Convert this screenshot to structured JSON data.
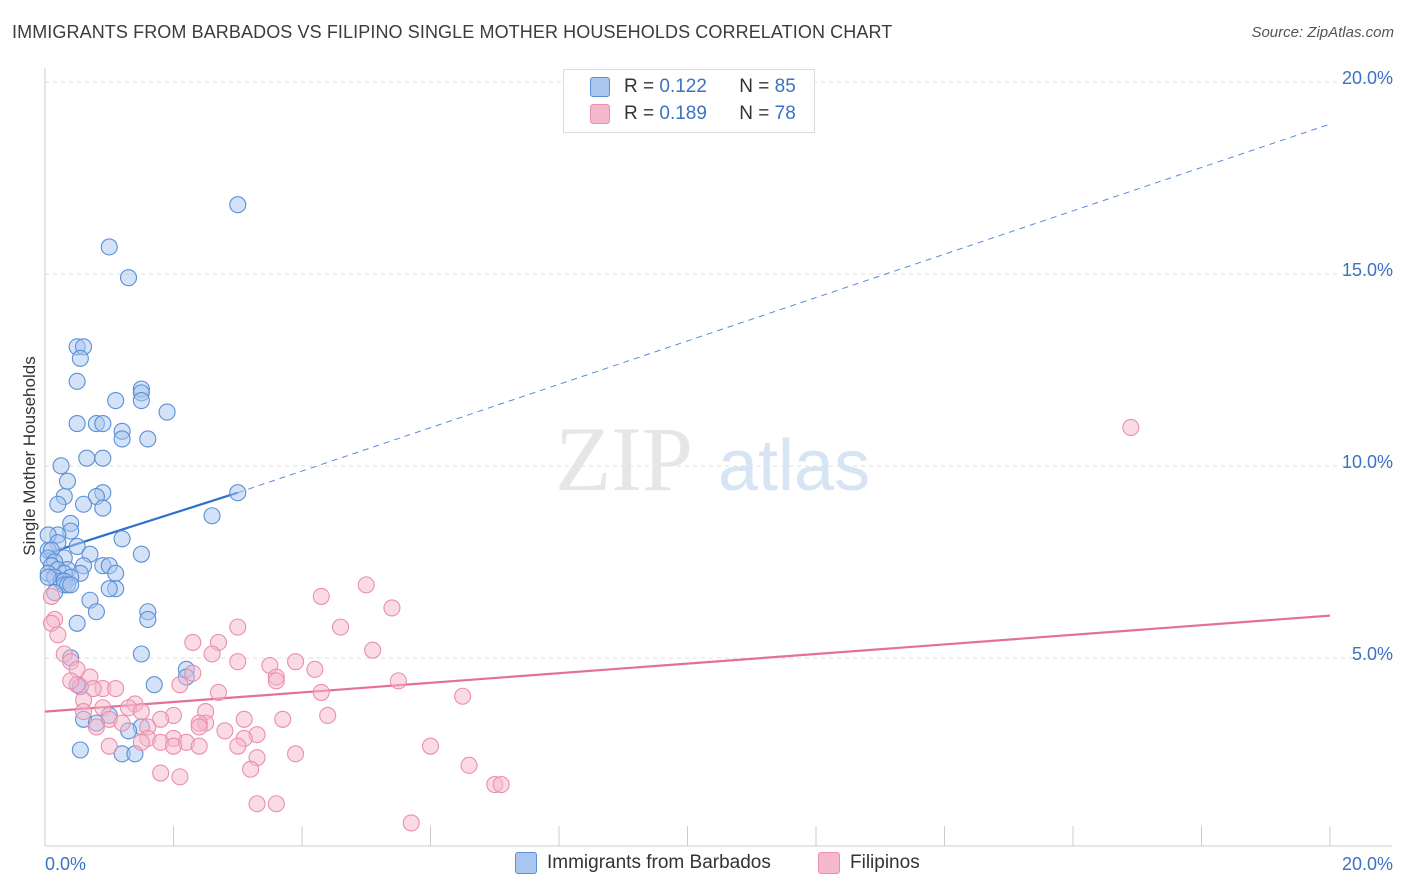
{
  "title": "IMMIGRANTS FROM BARBADOS VS FILIPINO SINGLE MOTHER HOUSEHOLDS CORRELATION CHART",
  "source": "Source: ZipAtlas.com",
  "legend": {
    "rows": [
      {
        "r_label": "R =",
        "r_value": "0.122",
        "n_label": "N =",
        "n_value": "85"
      },
      {
        "r_label": "R =",
        "r_value": "0.189",
        "n_label": "N =",
        "n_value": "78"
      }
    ]
  },
  "bottom_legend": [
    "Immigrants from Barbados",
    "Filipinos"
  ],
  "colors": {
    "blue_fill": "#a9c6ef",
    "blue_stroke": "#5b8fd6",
    "blue_line": "#2f6fcf",
    "pink_fill": "#f6b8cb",
    "pink_stroke": "#eb8fab",
    "pink_line": "#e4709a",
    "axis_text": "#3b72c4",
    "grid": "#dddddd"
  },
  "chart_data": {
    "type": "scatter",
    "xlabel": "",
    "ylabel": "Single Mother Households",
    "xlim": [
      0,
      20
    ],
    "ylim": [
      0,
      20
    ],
    "x_tick_labels": [
      "0.0%",
      "20.0%"
    ],
    "y_ticks": [
      5,
      10,
      15,
      20
    ],
    "y_tick_labels": [
      "5.0%",
      "10.0%",
      "15.0%",
      "20.0%"
    ],
    "grid": true,
    "series": [
      {
        "name": "Immigrants from Barbados",
        "trend": {
          "x0": 0,
          "y0": 7.6,
          "x1": 3,
          "y1": 9.2,
          "extend_to_x": 20,
          "extend_to_y": 18.8
        },
        "points": [
          [
            3.0,
            16.7
          ],
          [
            1.0,
            15.6
          ],
          [
            1.3,
            14.8
          ],
          [
            0.5,
            13.0
          ],
          [
            0.6,
            13.0
          ],
          [
            0.55,
            12.7
          ],
          [
            0.5,
            12.1
          ],
          [
            1.5,
            11.9
          ],
          [
            1.5,
            11.8
          ],
          [
            1.1,
            11.6
          ],
          [
            1.5,
            11.6
          ],
          [
            1.9,
            11.3
          ],
          [
            0.5,
            11.0
          ],
          [
            0.8,
            11.0
          ],
          [
            0.9,
            11.0
          ],
          [
            1.2,
            10.8
          ],
          [
            1.6,
            10.6
          ],
          [
            1.2,
            10.6
          ],
          [
            0.9,
            10.1
          ],
          [
            0.65,
            10.1
          ],
          [
            0.25,
            9.9
          ],
          [
            0.35,
            9.5
          ],
          [
            3.0,
            9.2
          ],
          [
            0.9,
            9.2
          ],
          [
            0.8,
            9.1
          ],
          [
            0.3,
            9.1
          ],
          [
            0.2,
            8.9
          ],
          [
            0.6,
            8.9
          ],
          [
            0.9,
            8.8
          ],
          [
            2.6,
            8.6
          ],
          [
            0.4,
            8.4
          ],
          [
            0.4,
            8.2
          ],
          [
            0.2,
            8.1
          ],
          [
            0.05,
            8.1
          ],
          [
            1.2,
            8.0
          ],
          [
            0.2,
            7.9
          ],
          [
            0.5,
            7.8
          ],
          [
            0.05,
            7.7
          ],
          [
            0.1,
            7.7
          ],
          [
            0.7,
            7.6
          ],
          [
            1.5,
            7.6
          ],
          [
            0.3,
            7.5
          ],
          [
            0.05,
            7.5
          ],
          [
            0.15,
            7.4
          ],
          [
            0.6,
            7.3
          ],
          [
            0.9,
            7.3
          ],
          [
            0.1,
            7.3
          ],
          [
            1.0,
            7.3
          ],
          [
            0.35,
            7.2
          ],
          [
            0.2,
            7.2
          ],
          [
            0.05,
            7.1
          ],
          [
            0.3,
            7.1
          ],
          [
            0.55,
            7.1
          ],
          [
            1.1,
            7.1
          ],
          [
            0.4,
            7.0
          ],
          [
            0.15,
            7.0
          ],
          [
            0.25,
            6.9
          ],
          [
            0.3,
            6.9
          ],
          [
            0.3,
            6.8
          ],
          [
            0.35,
            6.8
          ],
          [
            0.4,
            6.8
          ],
          [
            1.1,
            6.7
          ],
          [
            1.0,
            6.7
          ],
          [
            0.15,
            6.6
          ],
          [
            0.7,
            6.4
          ],
          [
            1.6,
            6.1
          ],
          [
            0.8,
            6.1
          ],
          [
            1.6,
            5.9
          ],
          [
            0.5,
            5.8
          ],
          [
            1.5,
            5.0
          ],
          [
            0.4,
            4.9
          ],
          [
            2.2,
            4.6
          ],
          [
            2.2,
            4.4
          ],
          [
            1.7,
            4.2
          ],
          [
            0.5,
            4.2
          ],
          [
            0.55,
            4.15
          ],
          [
            1.0,
            3.4
          ],
          [
            0.6,
            3.3
          ],
          [
            0.8,
            3.2
          ],
          [
            1.5,
            3.1
          ],
          [
            1.3,
            3.0
          ],
          [
            0.55,
            2.5
          ],
          [
            1.2,
            2.4
          ],
          [
            1.4,
            2.4
          ],
          [
            0.05,
            7.0
          ]
        ]
      },
      {
        "name": "Filipinos",
        "trend": {
          "x0": 0,
          "y0": 3.5,
          "x1": 20,
          "y1": 6.0
        },
        "points": [
          [
            16.9,
            10.9
          ],
          [
            5.0,
            6.8
          ],
          [
            4.3,
            6.5
          ],
          [
            5.4,
            6.2
          ],
          [
            0.15,
            5.9
          ],
          [
            0.1,
            5.8
          ],
          [
            3.0,
            5.7
          ],
          [
            4.6,
            5.7
          ],
          [
            2.3,
            5.3
          ],
          [
            2.7,
            5.3
          ],
          [
            0.3,
            5.0
          ],
          [
            5.1,
            5.1
          ],
          [
            2.6,
            5.0
          ],
          [
            0.4,
            4.8
          ],
          [
            3.0,
            4.8
          ],
          [
            3.9,
            4.8
          ],
          [
            3.5,
            4.7
          ],
          [
            4.2,
            4.6
          ],
          [
            0.5,
            4.6
          ],
          [
            2.3,
            4.5
          ],
          [
            0.7,
            4.4
          ],
          [
            3.6,
            4.4
          ],
          [
            3.6,
            4.3
          ],
          [
            5.5,
            4.3
          ],
          [
            2.1,
            4.2
          ],
          [
            0.5,
            4.2
          ],
          [
            0.9,
            4.1
          ],
          [
            0.75,
            4.1
          ],
          [
            1.1,
            4.1
          ],
          [
            4.3,
            4.0
          ],
          [
            2.7,
            4.0
          ],
          [
            6.5,
            3.9
          ],
          [
            0.6,
            3.8
          ],
          [
            1.4,
            3.7
          ],
          [
            1.3,
            3.6
          ],
          [
            0.9,
            3.6
          ],
          [
            1.5,
            3.5
          ],
          [
            2.5,
            3.5
          ],
          [
            0.6,
            3.5
          ],
          [
            2.0,
            3.4
          ],
          [
            4.4,
            3.4
          ],
          [
            1.8,
            3.3
          ],
          [
            1.0,
            3.3
          ],
          [
            3.1,
            3.3
          ],
          [
            3.7,
            3.3
          ],
          [
            1.2,
            3.2
          ],
          [
            2.5,
            3.2
          ],
          [
            2.4,
            3.2
          ],
          [
            1.6,
            3.1
          ],
          [
            2.4,
            3.1
          ],
          [
            0.8,
            3.1
          ],
          [
            2.8,
            3.0
          ],
          [
            3.3,
            2.9
          ],
          [
            2.0,
            2.8
          ],
          [
            1.6,
            2.8
          ],
          [
            1.5,
            2.7
          ],
          [
            2.2,
            2.7
          ],
          [
            1.8,
            2.7
          ],
          [
            3.1,
            2.8
          ],
          [
            1.0,
            2.6
          ],
          [
            2.4,
            2.6
          ],
          [
            3.0,
            2.6
          ],
          [
            2.0,
            2.6
          ],
          [
            6.0,
            2.6
          ],
          [
            3.9,
            2.4
          ],
          [
            3.3,
            2.3
          ],
          [
            3.2,
            2.0
          ],
          [
            1.8,
            1.9
          ],
          [
            2.1,
            1.8
          ],
          [
            6.6,
            2.1
          ],
          [
            7.0,
            1.6
          ],
          [
            7.1,
            1.6
          ],
          [
            3.3,
            1.1
          ],
          [
            3.6,
            1.1
          ],
          [
            5.7,
            0.6
          ],
          [
            0.4,
            4.3
          ],
          [
            0.1,
            6.5
          ],
          [
            0.2,
            5.5
          ]
        ]
      }
    ]
  }
}
